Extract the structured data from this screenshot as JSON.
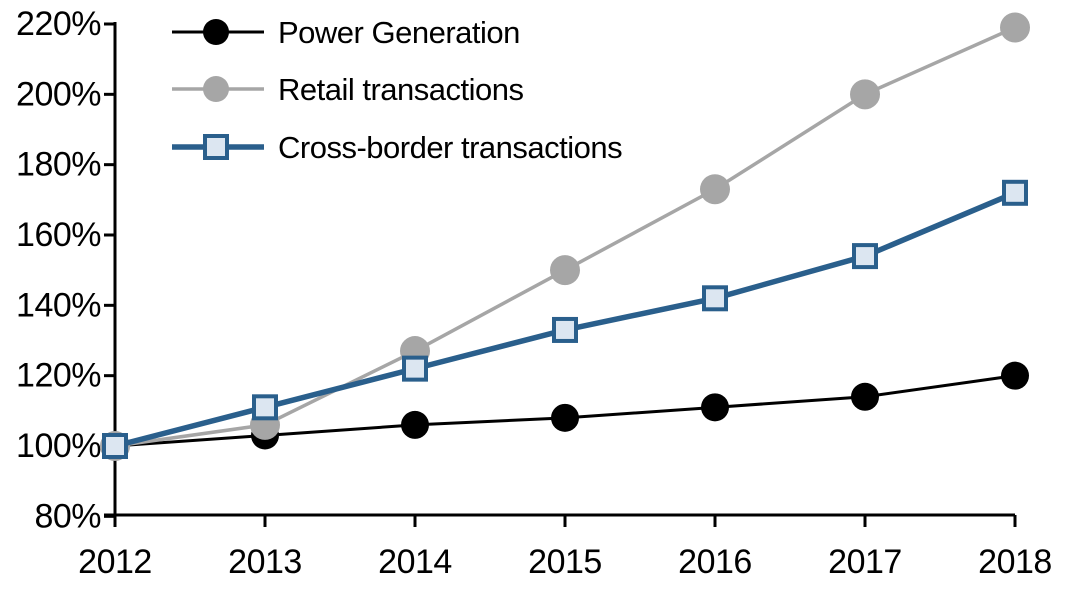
{
  "chart_data": {
    "type": "line",
    "title": "",
    "xlabel": "",
    "ylabel": "",
    "x": [
      "2012",
      "2013",
      "2014",
      "2015",
      "2016",
      "2017",
      "2018"
    ],
    "series": [
      {
        "name": "Power Generation",
        "color": "#000000",
        "marker": "circle",
        "marker_fill": "#000000",
        "line_width": 3,
        "marker_size": 14,
        "values": [
          100,
          103,
          106,
          108,
          111,
          114,
          120
        ]
      },
      {
        "name": "Retail transactions",
        "color": "#a6a6a6",
        "marker": "circle",
        "marker_fill": "#a6a6a6",
        "line_width": 3.5,
        "marker_size": 15,
        "values": [
          100,
          106,
          127,
          150,
          173,
          200,
          219
        ]
      },
      {
        "name": "Cross-border transactions",
        "color": "#2a5f8c",
        "marker": "square",
        "marker_fill": "#dce6f1",
        "line_width": 5.5,
        "marker_size": 11,
        "values": [
          100,
          111,
          122,
          133,
          142,
          154,
          172
        ]
      }
    ],
    "ylim": [
      80,
      220
    ],
    "ytick_step": 20,
    "ytick_suffix": "%",
    "grid": false,
    "legend_position": "top-left",
    "axis_color": "#000000"
  }
}
